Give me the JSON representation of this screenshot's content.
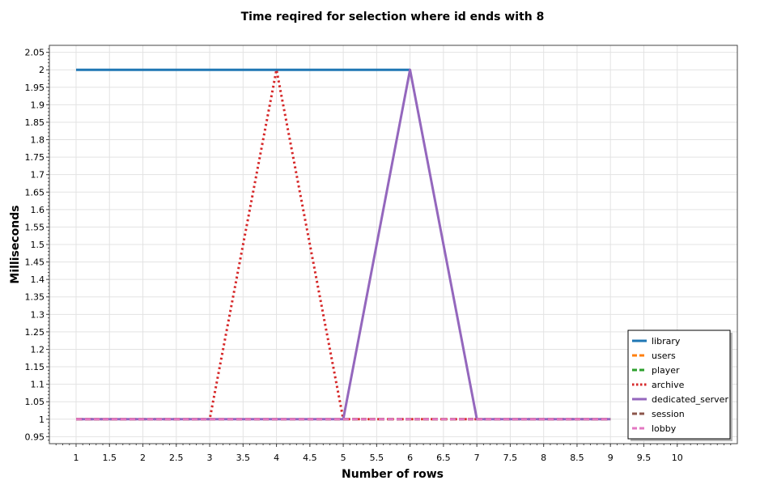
{
  "chart_data": {
    "type": "line",
    "title": "Time reqired for selection where id ends with 8",
    "xlabel": "Number of rows",
    "ylabel": "Milliseconds",
    "xlim": [
      0.6,
      10.9
    ],
    "ylim": [
      0.93,
      2.07
    ],
    "x_ticks": [
      "1",
      "1.5",
      "2",
      "2.5",
      "3",
      "3.5",
      "4",
      "4.5",
      "5",
      "5.5",
      "6",
      "6.5",
      "7",
      "7.5",
      "8",
      "8.5",
      "9",
      "9.5",
      "10"
    ],
    "y_ticks": [
      "0.95",
      "1",
      "1.05",
      "1.1",
      "1.15",
      "1.2",
      "1.25",
      "1.3",
      "1.35",
      "1.4",
      "1.45",
      "1.5",
      "1.55",
      "1.6",
      "1.65",
      "1.7",
      "1.75",
      "1.8",
      "1.85",
      "1.9",
      "1.95",
      "2",
      "2.05"
    ],
    "grid": true,
    "legend_position": "bottom-right",
    "series": [
      {
        "name": "library",
        "color": "#1f77b4",
        "dash": "solid",
        "x": [
          1,
          6
        ],
        "y": [
          2,
          2
        ]
      },
      {
        "name": "users",
        "color": "#ff7f0e",
        "dash": "dash",
        "x": [
          1,
          9
        ],
        "y": [
          1,
          1
        ]
      },
      {
        "name": "player",
        "color": "#2ca02c",
        "dash": "dash",
        "x": [
          1,
          9
        ],
        "y": [
          1,
          1
        ]
      },
      {
        "name": "archive",
        "color": "#d62728",
        "dash": "dot",
        "x": [
          1,
          3,
          4,
          5,
          9
        ],
        "y": [
          1,
          1,
          2,
          1,
          1
        ]
      },
      {
        "name": "dedicated_server",
        "color": "#9467bd",
        "dash": "solid",
        "x": [
          1,
          5,
          6,
          7,
          9
        ],
        "y": [
          1,
          1,
          2,
          1,
          1
        ]
      },
      {
        "name": "session",
        "color": "#8c564b",
        "dash": "dash",
        "x": [
          1,
          9
        ],
        "y": [
          1,
          1
        ]
      },
      {
        "name": "lobby",
        "color": "#e377c2",
        "dash": "dash",
        "x": [
          1,
          9
        ],
        "y": [
          1,
          1
        ]
      }
    ]
  }
}
